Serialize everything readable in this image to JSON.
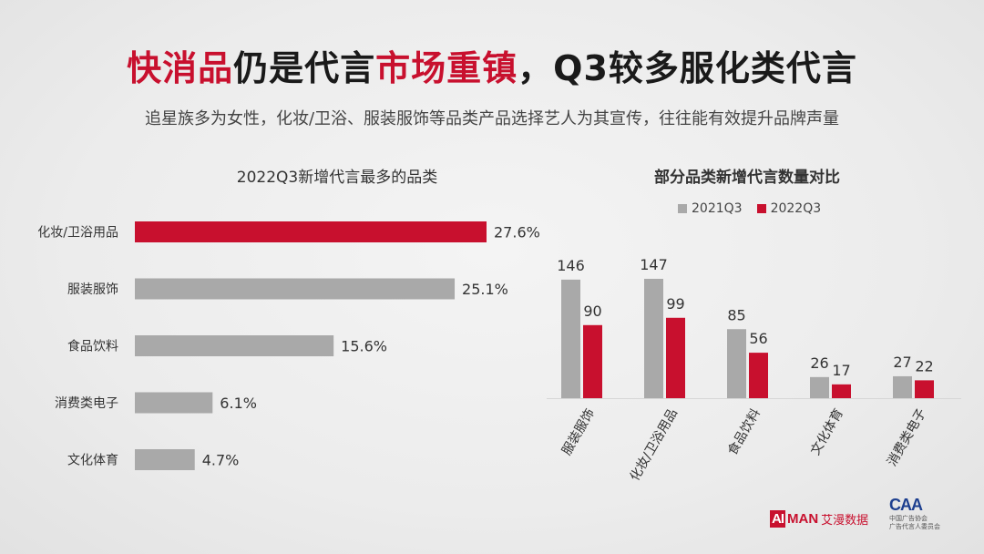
{
  "header": {
    "title_part1": "快消品",
    "title_part2": "仍是代言",
    "title_part3": "市场重镇",
    "title_part4": "，Q3较多服化类代言",
    "subtitle": "追星族多为女性，化妆/卫浴、服装服饰等品类产品选择艺人为其宣传，往往能有效提升品牌声量"
  },
  "colors": {
    "accent": "#c8102e",
    "gray": "#a9a9a9"
  },
  "chart_data": [
    {
      "type": "bar",
      "orientation": "horizontal",
      "title": "2022Q3新增代言最多的品类",
      "categories": [
        "化妆/卫浴用品",
        "服装服饰",
        "食品饮料",
        "消费类电子",
        "文化体育"
      ],
      "values": [
        27.6,
        25.1,
        15.6,
        6.1,
        4.7
      ],
      "value_labels": [
        "27.6%",
        "25.1%",
        "15.6%",
        "6.1%",
        "4.7%"
      ],
      "unit": "%",
      "highlight_index": 0
    },
    {
      "type": "bar",
      "title": "部分品类新增代言数量对比",
      "categories": [
        "服装服饰",
        "化妆/卫浴用品",
        "食品饮料",
        "文化体育",
        "消费类电子"
      ],
      "series": [
        {
          "name": "2021Q3",
          "values": [
            146,
            147,
            85,
            26,
            27
          ],
          "color": "#a9a9a9"
        },
        {
          "name": "2022Q3",
          "values": [
            90,
            99,
            56,
            17,
            22
          ],
          "color": "#c8102e"
        }
      ],
      "legend": "top"
    }
  ],
  "logos": {
    "aiman_ai": "AI",
    "aiman_man": "MAN",
    "aiman_cn": "艾漫数据",
    "caa_mark": "CAA",
    "caa_line1": "中国广告协会",
    "caa_line2": "广告代言人委员会"
  }
}
